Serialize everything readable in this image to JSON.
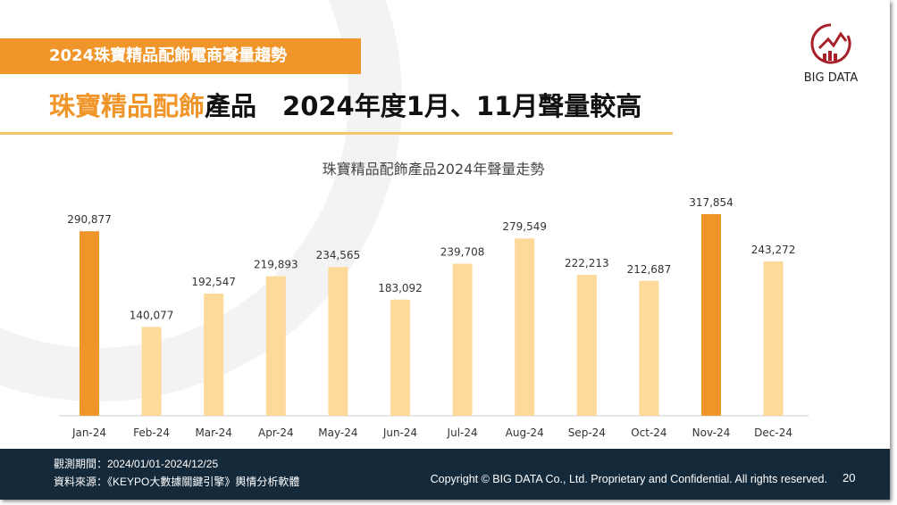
{
  "header": {
    "tag": "2024珠寶精品配飾電商聲量趨勢",
    "title_highlight": "珠寶精品配飾",
    "title_rest": "產品　2024年度1月、11月聲量較高",
    "logo_text": "BIG DATA"
  },
  "chart_data": {
    "type": "bar",
    "title": "珠寶精品配飾產品2024年聲量走勢",
    "categories": [
      "Jan-24",
      "Feb-24",
      "Mar-24",
      "Apr-24",
      "May-24",
      "Jun-24",
      "Jul-24",
      "Aug-24",
      "Sep-24",
      "Oct-24",
      "Nov-24",
      "Dec-24"
    ],
    "values": [
      290877,
      140077,
      192547,
      219893,
      234565,
      183092,
      239708,
      279549,
      222213,
      212687,
      317854,
      243272
    ],
    "labels": [
      "290,877",
      "140,077",
      "192,547",
      "219,893",
      "234,565",
      "183,092",
      "239,708",
      "279,549",
      "222,213",
      "212,687",
      "317,854",
      "243,272"
    ],
    "highlighted": [
      "Jan-24",
      "Nov-24"
    ],
    "colors": {
      "highlight": "#f0952a",
      "normal": "#fdd99a"
    },
    "xlabel": "",
    "ylabel": "",
    "ylim": [
      0,
      317854
    ],
    "grid": false
  },
  "footer": {
    "period": "觀測期間：2024/01/01-2024/12/25",
    "source": "資料來源：《KEYPO大數據關鍵引擎》輿情分析軟體",
    "copyright": "Copyright © BIG DATA Co., Ltd. Proprietary and Confidential. All rights reserved.",
    "page": "20"
  }
}
